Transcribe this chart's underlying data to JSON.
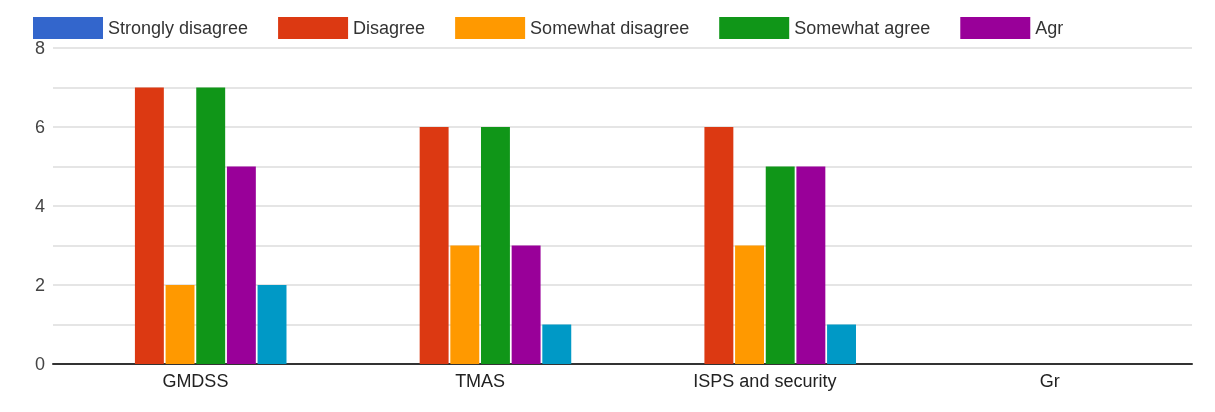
{
  "chart_data": {
    "type": "bar",
    "categories": [
      "GMDSS",
      "TMAS",
      "ISPS and security",
      "Gr"
    ],
    "series": [
      {
        "name": "Strongly disagree",
        "color": "#3366cc",
        "values": [
          0,
          0,
          0,
          null
        ]
      },
      {
        "name": "Disagree",
        "color": "#dc3912",
        "values": [
          7,
          6,
          6,
          null
        ]
      },
      {
        "name": "Somewhat disagree",
        "color": "#ff9900",
        "values": [
          2,
          3,
          3,
          null
        ]
      },
      {
        "name": "Somewhat agree",
        "color": "#109618",
        "values": [
          7,
          6,
          5,
          null
        ]
      },
      {
        "name": "Agr",
        "color": "#990099",
        "values": [
          5,
          3,
          5,
          null
        ]
      },
      {
        "color": "#0099c6",
        "values": [
          2,
          1,
          1,
          null
        ]
      }
    ],
    "ylim": [
      0,
      8
    ],
    "yticks": [
      0,
      {
        "value": 1,
        "label": null
      },
      2,
      {
        "value": 3,
        "label": null
      },
      4,
      {
        "value": 5,
        "label": null
      },
      6,
      {
        "value": 7,
        "label": null
      },
      8
    ],
    "grid": "y",
    "legend": "top left"
  }
}
